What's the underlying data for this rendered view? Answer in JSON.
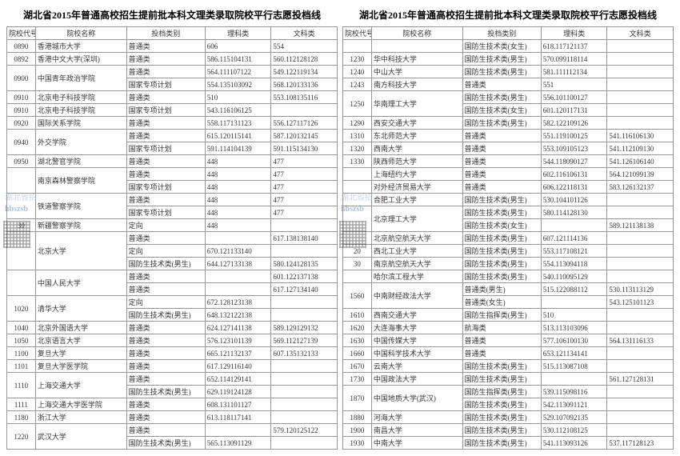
{
  "title": "湖北省2015年普通高校招生提前批本科文理类录取院校平行志愿投档线",
  "headers": {
    "code": "院校代号",
    "name": "院校名称",
    "cat": "投档类别",
    "sci": "理科类",
    "art": "文科类"
  },
  "watermark1": "湖北省招",
  "watermark2": "hbszsb",
  "left": [
    {
      "code": "0890",
      "name": "香港城市大学",
      "rows": [
        {
          "cat": "普通类",
          "sci": "606",
          "art": "554"
        }
      ]
    },
    {
      "code": "0892",
      "name": "香港中文大学(深圳)",
      "rows": [
        {
          "cat": "普通类",
          "sci": "586.115104131",
          "art": "560.112128128"
        }
      ]
    },
    {
      "code": "0900",
      "name": "中国青年政治学院",
      "rows": [
        {
          "cat": "普通类",
          "sci": "564.111107122",
          "art": "549.122119134"
        },
        {
          "cat": "国家专项计划",
          "sci": "554.135103092",
          "art": "568.120133136"
        }
      ]
    },
    {
      "code": "0910",
      "name": "北京电子科技学院",
      "rows": [
        {
          "cat": "普通类",
          "sci": "510",
          "art": "553.108135116"
        }
      ]
    },
    {
      "code": "0910",
      "name": "北京电子科技学院",
      "rows": [
        {
          "cat": "国家专项计划",
          "sci": "543.116106125",
          "art": ""
        }
      ]
    },
    {
      "code": "0920",
      "name": "国际关系学院",
      "rows": [
        {
          "cat": "普通类",
          "sci": "558.117131123",
          "art": "556.127117126"
        }
      ]
    },
    {
      "code": "0940",
      "name": "外交学院",
      "rows": [
        {
          "cat": "普通类",
          "sci": "615.120115141",
          "art": "587.120132145"
        },
        {
          "cat": "国家专项计划",
          "sci": "591.114104139",
          "art": "591.115134130"
        }
      ]
    },
    {
      "code": "0950",
      "name": "湖北警官学院",
      "rows": [
        {
          "cat": "普通类",
          "sci": "448",
          "art": "477"
        }
      ]
    },
    {
      "code": "",
      "name": "南京森林警察学院",
      "rows": [
        {
          "cat": "普通类",
          "sci": "448",
          "art": "477"
        },
        {
          "cat": "国家专项计划",
          "sci": "448",
          "art": "477"
        }
      ]
    },
    {
      "code": "",
      "name": "铁道警察学院",
      "rows": [
        {
          "cat": "普通类",
          "sci": "448",
          "art": "477"
        },
        {
          "cat": "国家专项计划",
          "sci": "448",
          "art": "477"
        }
      ]
    },
    {
      "code": "30",
      "name": "新疆警察学院",
      "rows": [
        {
          "cat": "定向",
          "sci": "448",
          "art": ""
        }
      ]
    },
    {
      "code": "",
      "name": "北京大学",
      "rows": [
        {
          "cat": "普通类",
          "sci": "",
          "art": "617.138138140"
        },
        {
          "cat": "定向",
          "sci": "670.121133140",
          "art": ""
        },
        {
          "cat": "国防生技术类(男生)",
          "sci": "644.127133138",
          "art": "580.124128135"
        }
      ]
    },
    {
      "code": "",
      "name": "中国人民大学",
      "rows": [
        {
          "cat": "普通类",
          "sci": "",
          "art": "601.122137138"
        },
        {
          "cat": "普通类",
          "sci": "",
          "art": "617.127134140"
        }
      ]
    },
    {
      "code": "1020",
      "name": "清华大学",
      "rows": [
        {
          "cat": "定向",
          "sci": "672.128123138",
          "art": ""
        },
        {
          "cat": "国防生技术类(男生)",
          "sci": "648.132122138",
          "art": ""
        }
      ]
    },
    {
      "code": "1040",
      "name": "北京外国语大学",
      "rows": [
        {
          "cat": "普通类",
          "sci": "624.127141138",
          "art": "589.129129132"
        }
      ]
    },
    {
      "code": "1050",
      "name": "北京语言大学",
      "rows": [
        {
          "cat": "普通类",
          "sci": "576.123101139",
          "art": "569.112127139"
        }
      ]
    },
    {
      "code": "1100",
      "name": "复旦大学",
      "rows": [
        {
          "cat": "普通类",
          "sci": "665.121132137",
          "art": "607.135132133"
        }
      ]
    },
    {
      "code": "1101",
      "name": "复旦大学医学院",
      "rows": [
        {
          "cat": "普通类",
          "sci": "617.129116140",
          "art": ""
        }
      ]
    },
    {
      "code": "1110",
      "name": "上海交通大学",
      "rows": [
        {
          "cat": "普通类",
          "sci": "652.114129141",
          "art": ""
        },
        {
          "cat": "国防生技术类(男生)",
          "sci": "629.119124128",
          "art": ""
        }
      ]
    },
    {
      "code": "1111",
      "name": "上海交通大学医学院",
      "rows": [
        {
          "cat": "普通类",
          "sci": "608.131101127",
          "art": ""
        }
      ]
    },
    {
      "code": "1180",
      "name": "浙江大学",
      "rows": [
        {
          "cat": "普通类",
          "sci": "613.118117141",
          "art": ""
        }
      ]
    },
    {
      "code": "1220",
      "name": "武汉大学",
      "rows": [
        {
          "cat": "普通类",
          "sci": "",
          "art": "579.120125122"
        },
        {
          "cat": "国防生技术类(男生)",
          "sci": "565.113091129",
          "art": ""
        }
      ]
    }
  ],
  "right": [
    {
      "code": "",
      "name": "",
      "rows": [
        {
          "cat": "国防生技术类(女生)",
          "sci": "618.117121137",
          "art": ""
        }
      ]
    },
    {
      "code": "1230",
      "name": "华中科技大学",
      "rows": [
        {
          "cat": "国防生技术类(男生)",
          "sci": "570.099118114",
          "art": ""
        }
      ]
    },
    {
      "code": "1240",
      "name": "中山大学",
      "rows": [
        {
          "cat": "国防生技术类(男生)",
          "sci": "581.111112134",
          "art": ""
        }
      ]
    },
    {
      "code": "1243",
      "name": "南方科技大学",
      "rows": [
        {
          "cat": "普通类",
          "sci": "551",
          "art": ""
        }
      ]
    },
    {
      "code": "1250",
      "name": "华南理工大学",
      "rows": [
        {
          "cat": "国防生技术类(男生)",
          "sci": "556.101100127",
          "art": ""
        },
        {
          "cat": "国防生技术类(女生)",
          "sci": "601.120117131",
          "art": ""
        }
      ]
    },
    {
      "code": "1290",
      "name": "西安交通大学",
      "rows": [
        {
          "cat": "国防生技术类(男生)",
          "sci": "582.122109126",
          "art": ""
        }
      ]
    },
    {
      "code": "1310",
      "name": "东北师范大学",
      "rows": [
        {
          "cat": "普通类",
          "sci": "551.119100125",
          "art": "541.116106130"
        }
      ]
    },
    {
      "code": "1320",
      "name": "西南大学",
      "rows": [
        {
          "cat": "普通类",
          "sci": "553.109105123",
          "art": "541.112109130"
        }
      ]
    },
    {
      "code": "1330",
      "name": "陕西师范大学",
      "rows": [
        {
          "cat": "普通类",
          "sci": "544.118090127",
          "art": "541.126106140"
        }
      ]
    },
    {
      "code": "",
      "name": "上海纽约大学",
      "rows": [
        {
          "cat": "普通类",
          "sci": "602.116106131",
          "art": "564.121099139"
        }
      ]
    },
    {
      "code": "",
      "name": "对外经济贸易大学",
      "rows": [
        {
          "cat": "普通类",
          "sci": "606.122118131",
          "art": "583.126132137"
        }
      ]
    },
    {
      "code": "",
      "name": "合肥工业大学",
      "rows": [
        {
          "cat": "国防生技术类(男生)",
          "sci": "530.104101126",
          "art": ""
        }
      ]
    },
    {
      "code": "",
      "name": "北京理工大学",
      "rows": [
        {
          "cat": "国防生技术类(男生)",
          "sci": "580.114128130",
          "art": ""
        },
        {
          "cat": "国防生技术类(女生)",
          "sci": "",
          "art": "589.121138138"
        }
      ]
    },
    {
      "code": "",
      "name": "北京航空航天大学",
      "rows": [
        {
          "cat": "国防生技术类(男生)",
          "sci": "607.121114136",
          "art": ""
        }
      ]
    },
    {
      "code": "20",
      "name": "西北工业大学",
      "rows": [
        {
          "cat": "国防生技术类(男生)",
          "sci": "553.117108121",
          "art": ""
        }
      ]
    },
    {
      "code": "30",
      "name": "南京航空航天大学",
      "rows": [
        {
          "cat": "国防生技术类(男生)",
          "sci": "554.113094118",
          "art": ""
        }
      ]
    },
    {
      "code": "",
      "name": "哈尔滨工程大学",
      "rows": [
        {
          "cat": "国防生技术类(男生)",
          "sci": "540.110095129",
          "art": ""
        }
      ]
    },
    {
      "code": "1560",
      "name": "中南财经政法大学",
      "rows": [
        {
          "cat": "普通类(男生)",
          "sci": "515.122088112",
          "art": "530.113113129"
        },
        {
          "cat": "普通类(女生)",
          "sci": "",
          "art": "543.125101123"
        }
      ]
    },
    {
      "code": "1610",
      "name": "西南交通大学",
      "rows": [
        {
          "cat": "国防生指挥类(男生)",
          "sci": "510",
          "art": ""
        }
      ]
    },
    {
      "code": "1620",
      "name": "大连海事大学",
      "rows": [
        {
          "cat": "航海类",
          "sci": "513.113103096",
          "art": ""
        }
      ]
    },
    {
      "code": "1630",
      "name": "中国传媒大学",
      "rows": [
        {
          "cat": "普通类",
          "sci": "577.106100130",
          "art": "564.131116133"
        }
      ]
    },
    {
      "code": "1660",
      "name": "中国科学技术大学",
      "rows": [
        {
          "cat": "普通类",
          "sci": "653.121134141",
          "art": ""
        }
      ]
    },
    {
      "code": "1670",
      "name": "云南大学",
      "rows": [
        {
          "cat": "国防生技术类(男生)",
          "sci": "515.113087108",
          "art": ""
        }
      ]
    },
    {
      "code": "1730",
      "name": "中国政法大学",
      "rows": [
        {
          "cat": "国防生技术类(男生)",
          "sci": "",
          "art": "561.127128131"
        }
      ]
    },
    {
      "code": "1870",
      "name": "中国地质大学(武汉)",
      "rows": [
        {
          "cat": "国防生指挥类(男生)",
          "sci": "539.115098116",
          "art": ""
        },
        {
          "cat": "国防生技术类(男生)",
          "sci": "542.113091121",
          "art": ""
        }
      ]
    },
    {
      "code": "1880",
      "name": "河海大学",
      "rows": [
        {
          "cat": "国防生技术类(男生)",
          "sci": "529.107092135",
          "art": ""
        }
      ]
    },
    {
      "code": "1900",
      "name": "南昌大学",
      "rows": [
        {
          "cat": "国防生技术类(男生)",
          "sci": "530.112108125",
          "art": ""
        }
      ]
    },
    {
      "code": "1930",
      "name": "中南大学",
      "rows": [
        {
          "cat": "国防生技术类(男生)",
          "sci": "541.113093126",
          "art": "537.117128123"
        }
      ]
    }
  ]
}
